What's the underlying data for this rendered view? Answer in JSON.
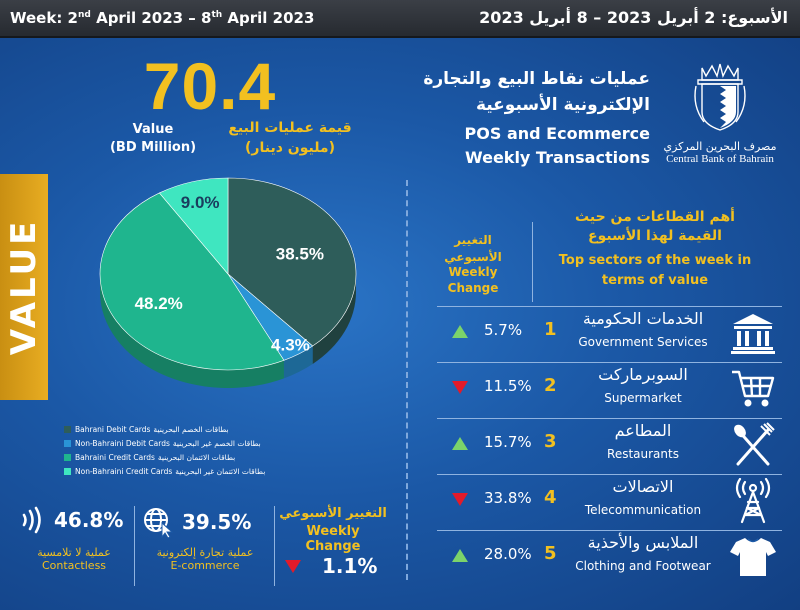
{
  "header": {
    "week_en_prefix": "Week: 2",
    "week_en_sup1": "nd",
    "week_en_mid": " April 2023 – 8",
    "week_en_sup2": "th",
    "week_en_suffix": " April 2023",
    "week_ar": "الأسبوع: 2 أبريل 2023 – 8 أبريل 2023"
  },
  "title": {
    "ar_line1": "عمليات نقاط البيع والتجارة",
    "ar_line2": "الإلكترونية الأسبوعية",
    "en_line1": "POS and Ecommerce",
    "en_line2": "Weekly Transactions"
  },
  "logo": {
    "ar": "مصرف البحرين المركزي",
    "en": "Central Bank of Bahrain"
  },
  "value": {
    "number": "70.4",
    "en_line1": "Value",
    "en_line2": "(BD Million)",
    "ar_line1": "قيمة عمليات البيع",
    "ar_line2": "(مليون دينار)",
    "side_tab": "VALUE"
  },
  "chart_data": {
    "type": "pie",
    "title": "",
    "slices": [
      {
        "label_en": "Bahrani Debit Cards",
        "label_ar": "بطاقات الخصم البحرينية",
        "value": 38.5,
        "value_label": "38.5%",
        "color": "#2e5d5a"
      },
      {
        "label_en": "Non-Bahraini Debit Cards",
        "label_ar": "بطاقات الخصم غير البحرينية",
        "value": 4.3,
        "value_label": "4.3%",
        "color": "#2a94d6"
      },
      {
        "label_en": "Bahraini Credit Cards",
        "label_ar": "بطاقات الائتمان البحرينية",
        "value": 48.2,
        "value_label": "48.2%",
        "color": "#1fb58e"
      },
      {
        "label_en": "Non-Bahraini Credit Cards",
        "label_ar": "بطاقات الائتمان غير البحرينية",
        "value": 9.0,
        "value_label": "9.0%",
        "color": "#3fe6c0"
      }
    ],
    "legend_position": "bottom-left"
  },
  "stats": {
    "contactless": {
      "value": "46.8%",
      "ar": "عملية لا تلامسية",
      "en": "Contactless",
      "icon": "contactless-icon"
    },
    "ecommerce": {
      "value": "39.5%",
      "ar": "عملية تجارة إلكترونية",
      "en": "E-commerce",
      "icon": "globe-cursor-icon"
    },
    "weekly_change": {
      "ar": "التغيير الأسبوعي",
      "en": "Weekly Change",
      "value": "1.1%",
      "direction": "down"
    }
  },
  "sectors": {
    "wc_ar_line1": "التغيير",
    "wc_ar_line2": "الأسبوعي",
    "wc_en_line1": "Weekly",
    "wc_en_line2": "Change",
    "top_ar_line1": "أهم القطاعات من حيث",
    "top_ar_line2": "القيمة لهذا الأسبوع",
    "top_en_line1": "Top sectors of the week in",
    "top_en_line2": "terms of value",
    "rows": [
      {
        "pct": "5.7%",
        "direction": "up",
        "rank": "1",
        "ar": "الخدمات الحكومية",
        "en": "Government Services",
        "icon": "government-building-icon"
      },
      {
        "pct": "11.5%",
        "direction": "down",
        "rank": "2",
        "ar": "السوبرماركت",
        "en": "Supermarket",
        "icon": "shopping-cart-icon"
      },
      {
        "pct": "15.7%",
        "direction": "up",
        "rank": "3",
        "ar": "المطاعم",
        "en": "Restaurants",
        "icon": "fork-spoon-icon"
      },
      {
        "pct": "33.8%",
        "direction": "down",
        "rank": "4",
        "ar": "الاتصالات",
        "en": "Telecommunication",
        "icon": "antenna-tower-icon"
      },
      {
        "pct": "28.0%",
        "direction": "up",
        "rank": "5",
        "ar": "الملابس والأحذية",
        "en": "Clothing and Footwear",
        "icon": "tshirt-icon"
      }
    ]
  },
  "colors": {
    "accent_gold": "#f2c020",
    "up_green": "#7bd36a",
    "down_red": "#e21b2a",
    "background_blue": "#1d5ba8"
  }
}
